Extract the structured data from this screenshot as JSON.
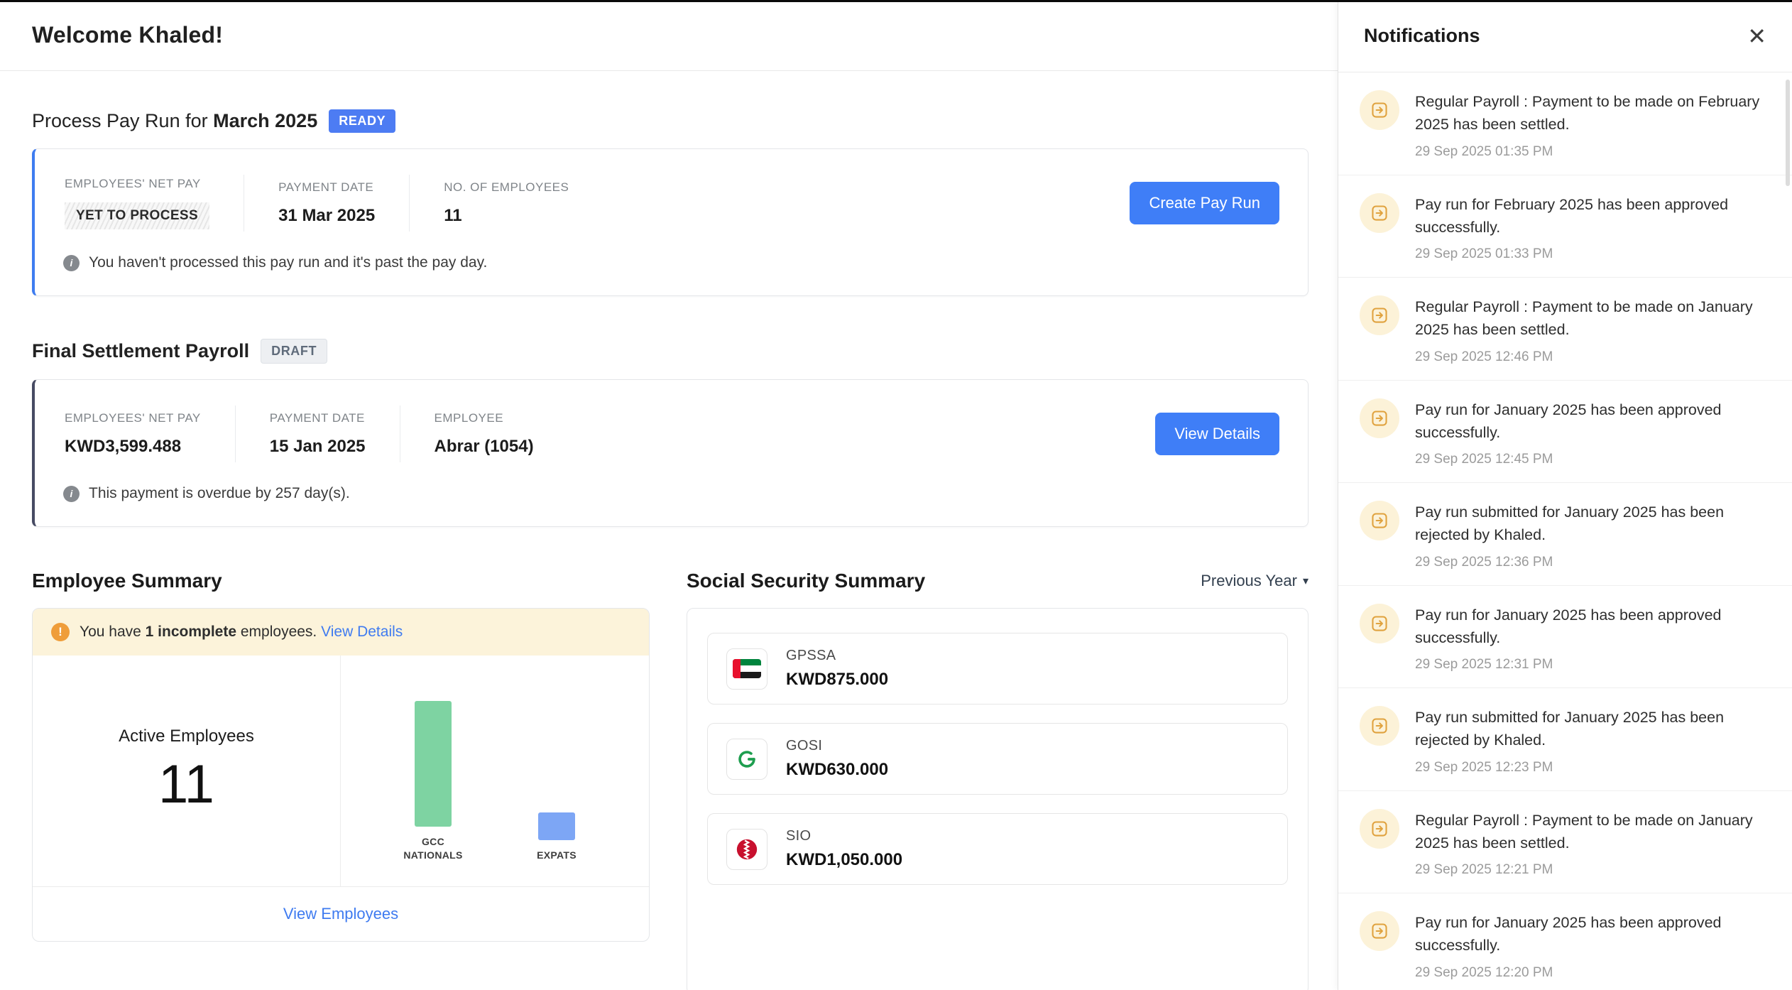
{
  "header": {
    "welcome": "Welcome Khaled!"
  },
  "pay_run": {
    "title_prefix": "Process Pay Run for",
    "title_period": "March 2025",
    "badge": "READY",
    "labels": {
      "net_pay": "EMPLOYEES' NET PAY",
      "payment_date": "PAYMENT DATE",
      "num_employees": "NO. OF EMPLOYEES"
    },
    "values": {
      "net_pay": "YET TO PROCESS",
      "payment_date": "31 Mar 2025",
      "num_employees": "11"
    },
    "button": "Create Pay Run",
    "info": "You haven't processed this pay run and it's past the pay day."
  },
  "final_settlement": {
    "title": "Final Settlement Payroll",
    "badge": "DRAFT",
    "labels": {
      "net_pay": "EMPLOYEES' NET PAY",
      "payment_date": "PAYMENT DATE",
      "employee": "EMPLOYEE"
    },
    "values": {
      "net_pay": "KWD3,599.488",
      "payment_date": "15 Jan 2025",
      "employee": "Abrar (1054)"
    },
    "button": "View Details",
    "info": "This payment is overdue by 257 day(s)."
  },
  "employee_summary": {
    "title": "Employee Summary",
    "warning": {
      "prefix": "You have",
      "highlight": "1 incomplete",
      "suffix": "employees.",
      "link": "View Details"
    },
    "active_label": "Active Employees",
    "active_count": "11",
    "footer_link": "View Employees"
  },
  "chart_data": {
    "type": "bar",
    "categories": [
      "GCC NATIONALS",
      "EXPATS"
    ],
    "values": [
      9,
      2
    ],
    "colors": [
      "#7ed3a2",
      "#7da6f5"
    ],
    "title": "",
    "xlabel": "",
    "ylabel": "",
    "ylim": [
      0,
      9
    ],
    "legend": false,
    "grid": false
  },
  "social_security": {
    "title": "Social Security Summary",
    "period_selector": "Previous Year",
    "rows": [
      {
        "name": "GPSSA",
        "amount": "KWD875.000",
        "icon": "uae-flag-icon"
      },
      {
        "name": "GOSI",
        "amount": "KWD630.000",
        "icon": "gosi-icon"
      },
      {
        "name": "SIO",
        "amount": "KWD1,050.000",
        "icon": "sio-icon"
      }
    ]
  },
  "notifications": {
    "title": "Notifications",
    "close_label": "✕",
    "items": [
      {
        "text": "Regular Payroll : Payment to be made on February 2025 has been settled.",
        "time": "29 Sep 2025 01:35 PM"
      },
      {
        "text": "Pay run for February 2025 has been approved successfully.",
        "time": "29 Sep 2025 01:33 PM"
      },
      {
        "text": "Regular Payroll : Payment to be made on January 2025 has been settled.",
        "time": "29 Sep 2025 12:46 PM"
      },
      {
        "text": "Pay run for January 2025 has been approved successfully.",
        "time": "29 Sep 2025 12:45 PM"
      },
      {
        "text": "Pay run submitted for January 2025 has been rejected by Khaled.",
        "time": "29 Sep 2025 12:36 PM"
      },
      {
        "text": "Pay run for January 2025 has been approved successfully.",
        "time": "29 Sep 2025 12:31 PM"
      },
      {
        "text": "Pay run submitted for January 2025 has been rejected by Khaled.",
        "time": "29 Sep 2025 12:23 PM"
      },
      {
        "text": "Regular Payroll : Payment to be made on January 2025 has been settled.",
        "time": "29 Sep 2025 12:21 PM"
      },
      {
        "text": "Pay run for January 2025 has been approved successfully.",
        "time": "29 Sep 2025 12:20 PM"
      }
    ]
  },
  "colors": {
    "primary_button": "#3f7ef7",
    "ready_badge": "#4d7cf3",
    "draft_badge_bg": "#edeff2",
    "card_accent_blue": "#3e7cf0",
    "card_accent_dark": "#474b63",
    "warning_banner_bg": "#fcf3da",
    "warning_icon": "#ef9d3a",
    "notification_icon": "#e0a23e",
    "link": "#3f7bf0",
    "bar_gcc_nationals": "#7ed3a2",
    "bar_expats": "#7da6f5"
  }
}
